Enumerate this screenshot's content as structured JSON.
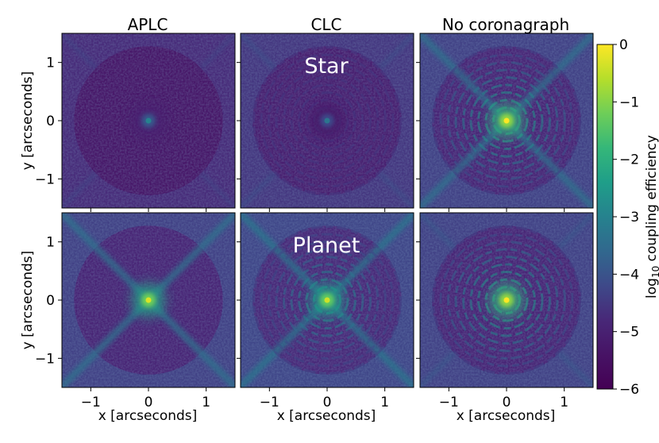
{
  "chart_data": {
    "type": "heatmap",
    "layout": "2 rows x 3 columns of image panels with shared colorbar",
    "columns": [
      "APLC",
      "CLC",
      "No coronagraph"
    ],
    "rows": [
      "Star",
      "Planet"
    ],
    "xlabel": "x [arcseconds]",
    "ylabel": "y [arcseconds]",
    "xlim": [
      -1.5,
      1.5
    ],
    "ylim": [
      -1.5,
      1.5
    ],
    "xticks": [
      -1,
      0,
      1
    ],
    "yticks": [
      1,
      0,
      -1
    ],
    "tick_labels": {
      "x": [
        "−1",
        "0",
        "1"
      ],
      "y": [
        "1",
        "0",
        "−1"
      ]
    },
    "colorbar": {
      "label": "log",
      "label_sub": "10",
      "label_rest": " coupling efficiency",
      "range": [
        -6,
        0
      ],
      "ticks": [
        0,
        -1,
        -2,
        -3,
        -4,
        -5,
        -6
      ],
      "tick_labels": [
        "0",
        "−1",
        "−2",
        "−3",
        "−4",
        "−5",
        "−6"
      ],
      "colormap": "viridis"
    },
    "panels": [
      {
        "row": "Star",
        "column": "APLC",
        "core_peak_log10": -3.0,
        "dark_hole_log10": -5.3,
        "diagonal_spikes": false,
        "rings": false
      },
      {
        "row": "Star",
        "column": "CLC",
        "core_peak_log10": -3.3,
        "dark_hole_log10": -5.1,
        "diagonal_spikes": false,
        "rings": true
      },
      {
        "row": "Star",
        "column": "No coronagraph",
        "core_peak_log10": 0,
        "dark_hole_log10": -4.9,
        "diagonal_spikes": true,
        "rings": true
      },
      {
        "row": "Planet",
        "column": "APLC",
        "core_peak_log10": -0.3,
        "dark_hole_log10": -4.9,
        "diagonal_spikes": true,
        "rings": false
      },
      {
        "row": "Planet",
        "column": "CLC",
        "core_peak_log10": -0.4,
        "dark_hole_log10": -4.8,
        "diagonal_spikes": true,
        "rings": true
      },
      {
        "row": "Planet",
        "column": "No coronagraph",
        "core_peak_log10": 0,
        "dark_hole_log10": -4.9,
        "diagonal_spikes": false,
        "rings": true
      }
    ]
  }
}
